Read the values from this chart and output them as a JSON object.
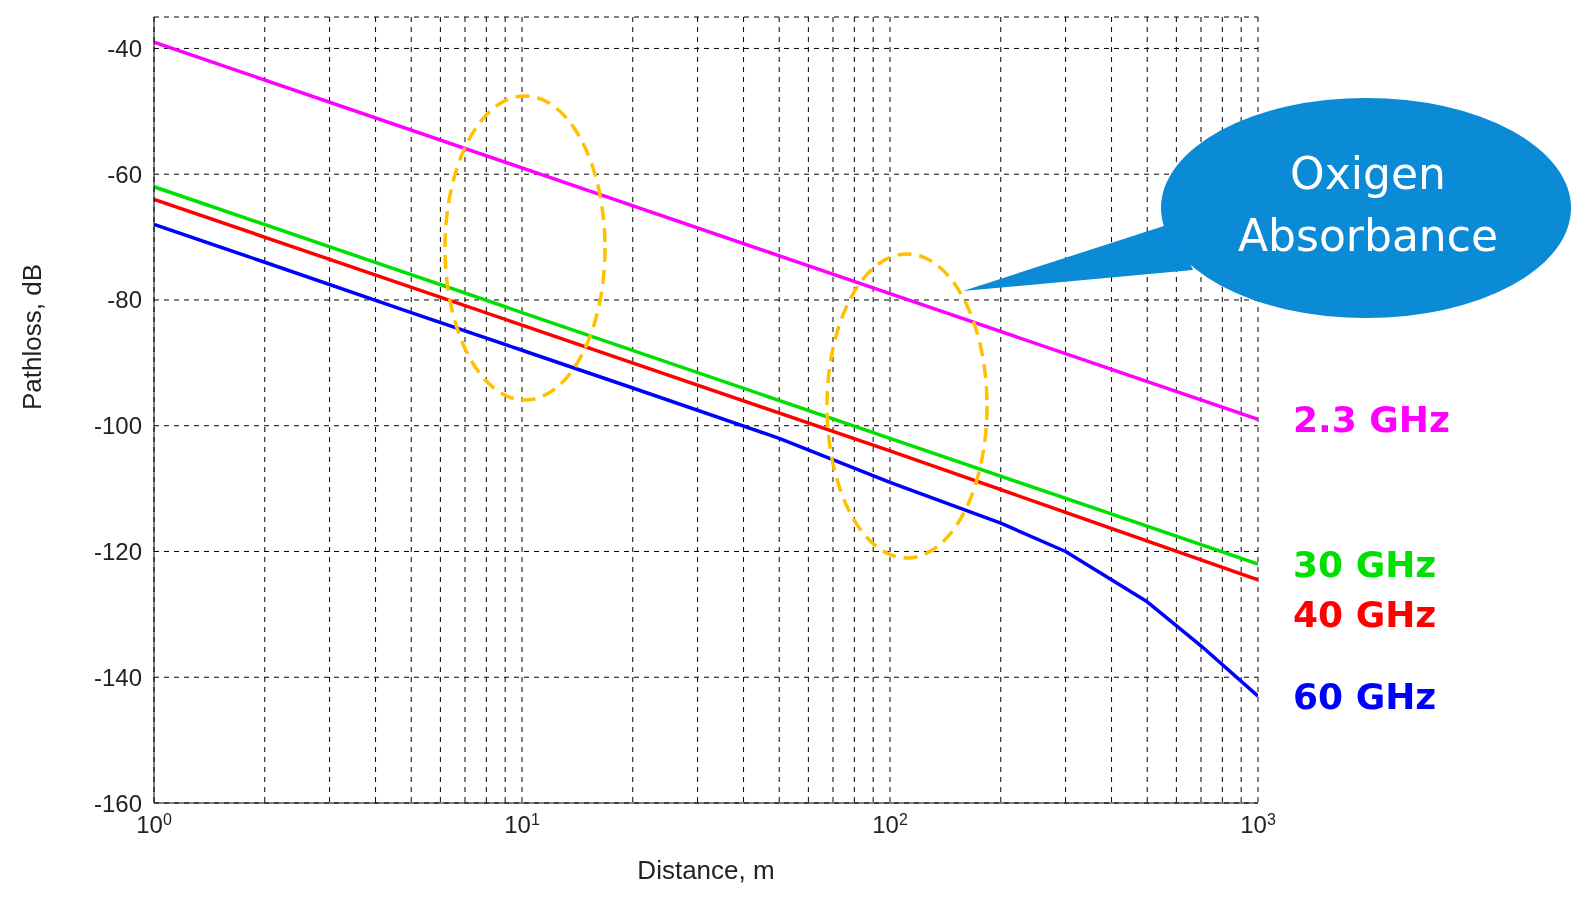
{
  "chart_data": {
    "type": "line",
    "xlabel": "Distance, m",
    "ylabel": "Pathloss, dB",
    "log": "x",
    "grid": true,
    "xlim": [
      1,
      1000
    ],
    "ylim": [
      -160,
      -35
    ],
    "xticks": [
      {
        "value": 1,
        "label": "10$^{0}$"
      },
      {
        "value": 2,
        "label": null
      },
      {
        "value": 3,
        "label": null
      },
      {
        "value": 4,
        "label": null
      },
      {
        "value": 5,
        "label": null
      },
      {
        "value": 6,
        "label": null
      },
      {
        "value": 7,
        "label": null
      },
      {
        "value": 8,
        "label": null
      },
      {
        "value": 9,
        "label": null
      },
      {
        "value": 10,
        "label": "10$^{1}$"
      },
      {
        "value": 20,
        "label": null
      },
      {
        "value": 30,
        "label": null
      },
      {
        "value": 40,
        "label": null
      },
      {
        "value": 50,
        "label": null
      },
      {
        "value": 60,
        "label": null
      },
      {
        "value": 70,
        "label": null
      },
      {
        "value": 80,
        "label": null
      },
      {
        "value": 90,
        "label": null
      },
      {
        "value": 100,
        "label": "10$^{2}$"
      },
      {
        "value": 200,
        "label": null
      },
      {
        "value": 300,
        "label": null
      },
      {
        "value": 400,
        "label": null
      },
      {
        "value": 500,
        "label": null
      },
      {
        "value": 600,
        "label": null
      },
      {
        "value": 700,
        "label": null
      },
      {
        "value": 800,
        "label": null
      },
      {
        "value": 900,
        "label": null
      },
      {
        "value": 1000,
        "label": "10$^{3}$"
      }
    ],
    "yticks": [
      -160,
      -140,
      -120,
      -100,
      -80,
      -60,
      -40
    ],
    "annotations": [
      "Oxigen Absorbance"
    ],
    "series": [
      {
        "name": "2.3 GHz",
        "color": "#ff00ff",
        "x": [
          1,
          10,
          100,
          1000
        ],
        "values": [
          -39,
          -59,
          -79,
          -99
        ]
      },
      {
        "name": "30 GHz",
        "color": "#00e000",
        "x": [
          1,
          10,
          100,
          1000
        ],
        "values": [
          -62,
          -82,
          -102,
          -122
        ]
      },
      {
        "name": "40 GHz",
        "color": "#ff0000",
        "x": [
          1,
          10,
          100,
          1000
        ],
        "values": [
          -64,
          -84,
          -104,
          -124.5
        ]
      },
      {
        "name": "60 GHz",
        "color": "#0000ff",
        "x": [
          1,
          2,
          5,
          10,
          20,
          50,
          100,
          200,
          300,
          500,
          700,
          1000
        ],
        "values": [
          -68,
          -74,
          -82,
          -88,
          -94,
          -102,
          -109,
          -115.5,
          -120,
          -128,
          -135,
          -143
        ]
      }
    ]
  }
}
